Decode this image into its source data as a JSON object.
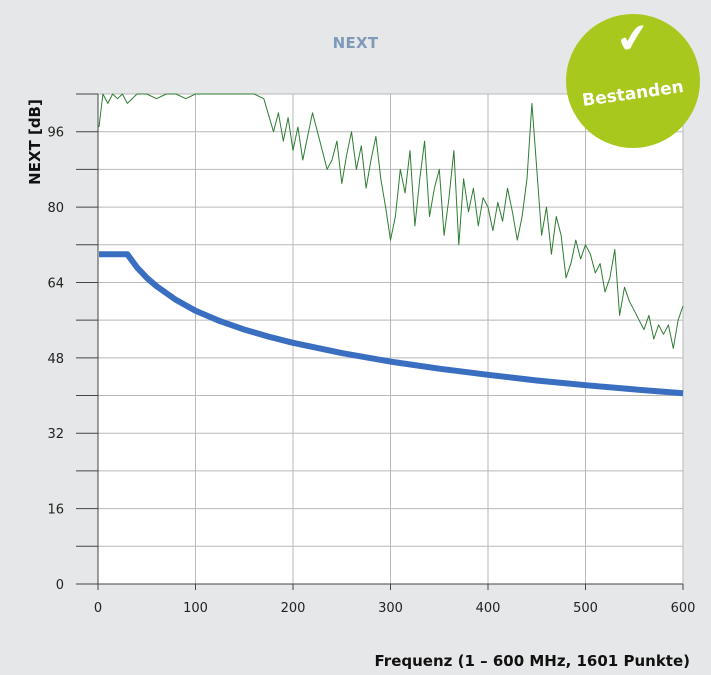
{
  "chart_data": {
    "type": "line",
    "title": "NEXT",
    "xlabel": "Frequenz (1 – 600 MHz, 1601 Punkte)",
    "ylabel": "NEXT [dB]",
    "xlim": [
      0,
      600
    ],
    "ylim": [
      0,
      104
    ],
    "x_ticks": [
      "0",
      "100",
      "200",
      "300",
      "400",
      "500",
      "600"
    ],
    "y_ticks": [
      "0",
      "16",
      "32",
      "48",
      "64",
      "80",
      "96"
    ],
    "grid": true,
    "series": [
      {
        "color": "#2e7d32",
        "x": [
          1,
          5,
          10,
          15,
          20,
          25,
          30,
          40,
          50,
          60,
          70,
          80,
          90,
          100,
          110,
          120,
          130,
          140,
          150,
          160,
          170,
          180,
          185,
          190,
          195,
          200,
          205,
          210,
          215,
          220,
          225,
          230,
          235,
          240,
          245,
          250,
          255,
          260,
          265,
          270,
          275,
          280,
          285,
          290,
          295,
          300,
          305,
          310,
          315,
          320,
          325,
          330,
          335,
          340,
          345,
          350,
          355,
          360,
          365,
          370,
          375,
          380,
          385,
          390,
          395,
          400,
          405,
          410,
          415,
          420,
          425,
          430,
          435,
          440,
          445,
          450,
          455,
          460,
          465,
          470,
          475,
          480,
          485,
          490,
          495,
          500,
          505,
          510,
          515,
          520,
          525,
          530,
          535,
          540,
          545,
          550,
          555,
          560,
          565,
          570,
          575,
          580,
          585,
          590,
          595,
          600
        ],
        "values": [
          97,
          104,
          102,
          104,
          103,
          104,
          102,
          104,
          104,
          103,
          104,
          104,
          103,
          104,
          104,
          104,
          104,
          104,
          104,
          104,
          103,
          96,
          100,
          94,
          99,
          92,
          97,
          90,
          95,
          100,
          96,
          92,
          88,
          90,
          94,
          85,
          91,
          96,
          88,
          93,
          84,
          90,
          95,
          86,
          80,
          73,
          78,
          88,
          83,
          92,
          76,
          86,
          94,
          78,
          84,
          88,
          74,
          82,
          92,
          72,
          86,
          79,
          84,
          76,
          82,
          80,
          75,
          81,
          77,
          84,
          79,
          73,
          78,
          86,
          102,
          88,
          74,
          80,
          70,
          78,
          74,
          65,
          68,
          73,
          69,
          72,
          70,
          66,
          68,
          62,
          65,
          71,
          57,
          63,
          60,
          58,
          56,
          54,
          57,
          52,
          55,
          53,
          55,
          50,
          56,
          59
        ]
      },
      {
        "color": "#3a6ec0",
        "x": [
          1,
          30,
          40,
          50,
          60,
          80,
          100,
          125,
          150,
          175,
          200,
          250,
          300,
          350,
          400,
          450,
          500,
          550,
          600
        ],
        "values": [
          70,
          70,
          67.2,
          65.0,
          63.2,
          60.3,
          58.0,
          55.8,
          54.0,
          52.5,
          51.2,
          49.0,
          47.2,
          45.7,
          44.4,
          43.2,
          42.2,
          41.3,
          40.5
        ]
      }
    ]
  },
  "badge": {
    "check_icon": "✔",
    "label": "Bestanden",
    "color": "#a8c81e"
  }
}
